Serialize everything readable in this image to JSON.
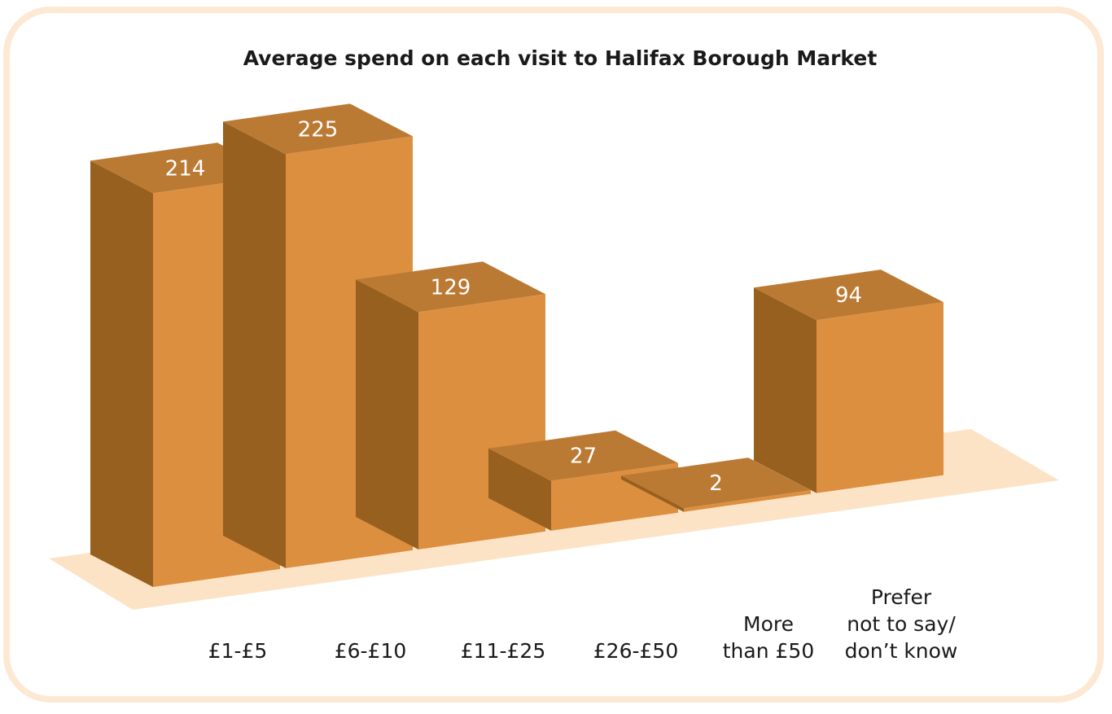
{
  "chart_data": {
    "type": "bar",
    "title": "Average spend on each visit to Halifax Borough Market",
    "categories": [
      [
        "£1-£5"
      ],
      [
        "£6-£10"
      ],
      [
        "£11-£25"
      ],
      [
        "£26-£50"
      ],
      [
        "More",
        "than £50"
      ],
      [
        "Prefer",
        "not to say/",
        "don’t know"
      ]
    ],
    "values": [
      214,
      225,
      129,
      27,
      2,
      94
    ],
    "value_labels": [
      "214",
      "225",
      "129",
      "27",
      "2",
      "94"
    ],
    "ylim": [
      0,
      225
    ],
    "grid": false,
    "style": "3d",
    "colors": {
      "front": "#dd8f40",
      "side": "#97601f",
      "top": "#bb7a34",
      "floor": "#fde3c6",
      "frame": "#fde9d3"
    }
  }
}
